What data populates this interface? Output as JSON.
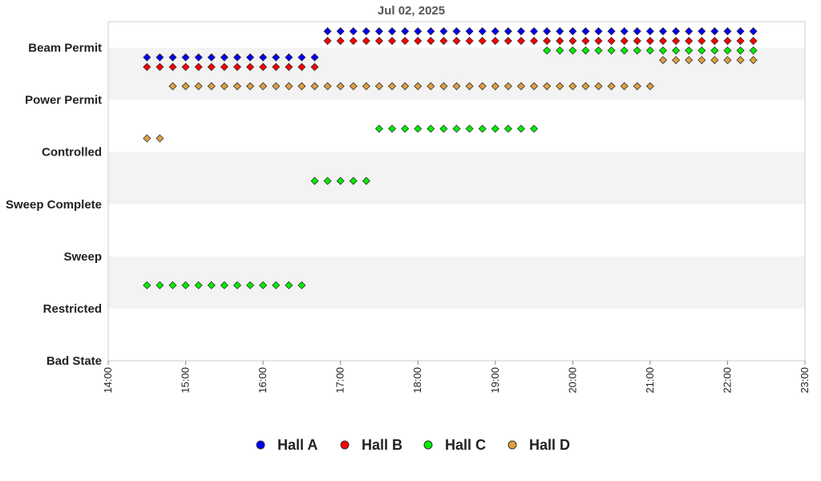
{
  "chart_data": {
    "type": "scatter",
    "title": "Jul 02, 2025",
    "xlabel": "",
    "ylabel": "",
    "x_unit": "time",
    "xlim": [
      "14:00",
      "23:00"
    ],
    "x_ticks": [
      "14:00",
      "15:00",
      "16:00",
      "17:00",
      "18:00",
      "19:00",
      "20:00",
      "21:00",
      "22:00",
      "23:00"
    ],
    "y_categories": [
      "Bad State",
      "Restricted",
      "Sweep",
      "Sweep Complete",
      "Controlled",
      "Power Permit",
      "Beam Permit"
    ],
    "grid": false,
    "band_colors": [
      "#ffffff",
      "#f3f3f3"
    ],
    "legend_position": "bottom",
    "series": [
      {
        "name": "Hall A",
        "color": "#0000ff",
        "segments": [
          {
            "state": "Power Permit",
            "start": "14:30",
            "end": "16:40"
          },
          {
            "state": "Beam Permit",
            "start": "16:50",
            "end": "16:50"
          },
          {
            "state": "Beam Permit",
            "start": "17:00",
            "end": "22:20"
          }
        ]
      },
      {
        "name": "Hall B",
        "color": "#ff0000",
        "segments": [
          {
            "state": "Power Permit",
            "start": "14:30",
            "end": "16:40"
          },
          {
            "state": "Beam Permit",
            "start": "16:50",
            "end": "16:50"
          },
          {
            "state": "Beam Permit",
            "start": "17:00",
            "end": "22:20"
          }
        ]
      },
      {
        "name": "Hall C",
        "color": "#00ee00",
        "segments": [
          {
            "state": "Restricted",
            "start": "14:30",
            "end": "16:30"
          },
          {
            "state": "Sweep Complete",
            "start": "16:40",
            "end": "17:20"
          },
          {
            "state": "Controlled",
            "start": "17:30",
            "end": "19:30"
          },
          {
            "state": "Beam Permit",
            "start": "19:40",
            "end": "19:40"
          },
          {
            "state": "Beam Permit",
            "start": "19:50",
            "end": "22:20"
          }
        ]
      },
      {
        "name": "Hall D",
        "color": "#dda040",
        "segments": [
          {
            "state": "Controlled",
            "start": "14:30",
            "end": "14:40"
          },
          {
            "state": "Power Permit",
            "start": "14:50",
            "end": "21:00"
          },
          {
            "state": "Beam Permit",
            "start": "21:10",
            "end": "22:20"
          }
        ]
      }
    ]
  }
}
